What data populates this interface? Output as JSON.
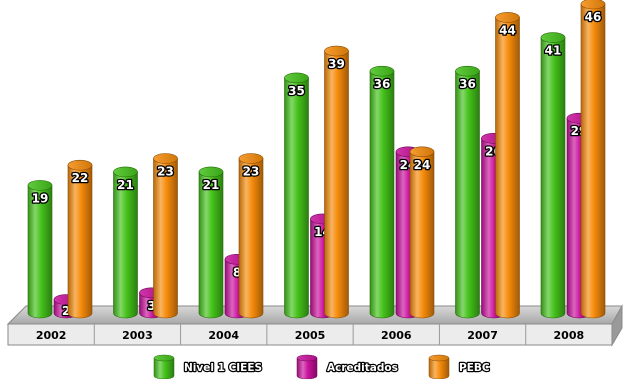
{
  "chart_data": {
    "type": "bar",
    "categories": [
      "2002",
      "2003",
      "2004",
      "2005",
      "2006",
      "2007",
      "2008"
    ],
    "series": [
      {
        "name": "Nivel 1 CIEES",
        "values": [
          19,
          21,
          21,
          35,
          36,
          36,
          41
        ],
        "color": "#44c21a"
      },
      {
        "name": "Acreditados",
        "values": [
          2,
          3,
          8,
          14,
          24,
          26,
          29
        ],
        "color": "#c9119c"
      },
      {
        "name": "PEBC",
        "values": [
          22,
          23,
          23,
          39,
          24,
          44,
          46
        ],
        "color": "#f68b0b"
      }
    ],
    "ylim": [
      0,
      46
    ],
    "grid": false,
    "legend_position": "bottom-center",
    "data_labels": true,
    "style": "3d-cylinder"
  }
}
